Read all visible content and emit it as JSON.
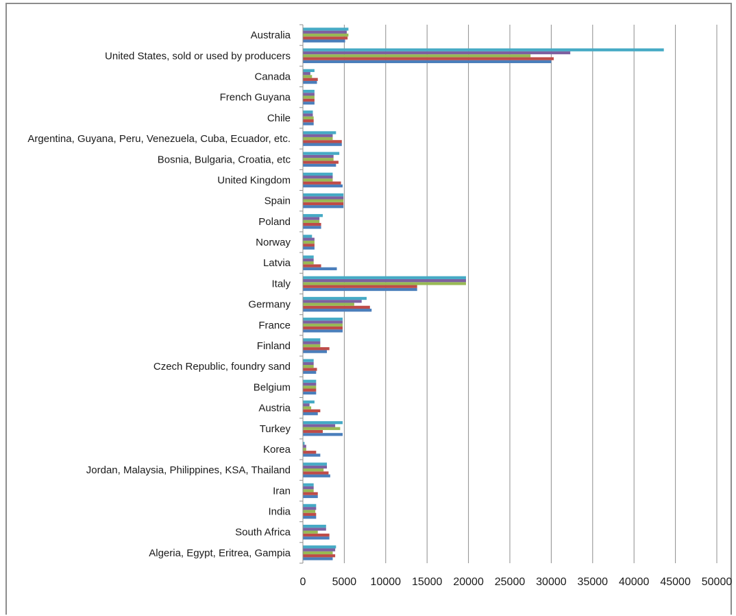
{
  "chart_data": {
    "type": "bar",
    "orientation": "horizontal",
    "title": "",
    "xlabel": "",
    "ylabel": "",
    "xlim": [
      0,
      50000
    ],
    "x_ticks": [
      "0",
      "5000",
      "10000",
      "15000",
      "20000",
      "25000",
      "30000",
      "35000",
      "40000",
      "45000",
      "50000"
    ],
    "grid": "vertical",
    "legend": "none",
    "categories": [
      "Australia",
      "United States, sold or used by producers",
      "Canada",
      "French Guyana",
      "Chile",
      "Argentina, Guyana, Peru, Venezuela, Cuba, Ecuador, etc.",
      "Bosnia, Bulgaria, Croatia, etc",
      "United Kingdom",
      "Spain",
      "Poland",
      "Norway",
      "Latvia",
      "Italy",
      "Germany",
      "France",
      "Finland",
      "Czech Republic, foundry sand",
      "Belgium",
      "Austria",
      "Turkey",
      "Korea",
      "Jordan, Malaysia, Philippines, KSA, Thailand",
      "Iran",
      "India",
      "South Africa",
      "Algeria, Egypt, Eritrea, Gampia"
    ],
    "series": [
      {
        "color": "#4a7ebb",
        "values": [
          5100,
          30000,
          1700,
          1400,
          1300,
          4700,
          4000,
          4800,
          4900,
          2200,
          1400,
          4100,
          13800,
          8300,
          4800,
          2900,
          1600,
          1600,
          1800,
          4800,
          2100,
          3300,
          1800,
          1600,
          3200,
          3600
        ]
      },
      {
        "color": "#be4b48",
        "values": [
          5400,
          30300,
          1800,
          1400,
          1300,
          4700,
          4300,
          4600,
          4900,
          2200,
          1400,
          2200,
          13800,
          8100,
          4800,
          3200,
          1700,
          1600,
          2100,
          2400,
          1600,
          3100,
          1800,
          1600,
          3200,
          3900
        ]
      },
      {
        "color": "#98b954",
        "values": [
          5500,
          27500,
          1100,
          1400,
          1300,
          3600,
          3700,
          3600,
          4900,
          2000,
          1400,
          1300,
          19700,
          6200,
          4800,
          2100,
          1300,
          1600,
          1000,
          4500,
          400,
          2500,
          1300,
          1500,
          1800,
          3600
        ]
      },
      {
        "color": "#7d60a0",
        "values": [
          5300,
          32300,
          900,
          1400,
          1200,
          3600,
          3700,
          3600,
          4900,
          2000,
          1400,
          1300,
          19700,
          7100,
          4800,
          2100,
          1300,
          1600,
          800,
          3900,
          400,
          2900,
          1300,
          1600,
          2800,
          3900
        ]
      },
      {
        "color": "#46aac5",
        "values": [
          5500,
          43600,
          1400,
          1400,
          1200,
          4000,
          4400,
          3600,
          4900,
          2400,
          1100,
          1300,
          19700,
          7700,
          4800,
          2100,
          1300,
          1600,
          1400,
          4800,
          200,
          2900,
          1300,
          1600,
          2800,
          4000
        ]
      }
    ]
  }
}
